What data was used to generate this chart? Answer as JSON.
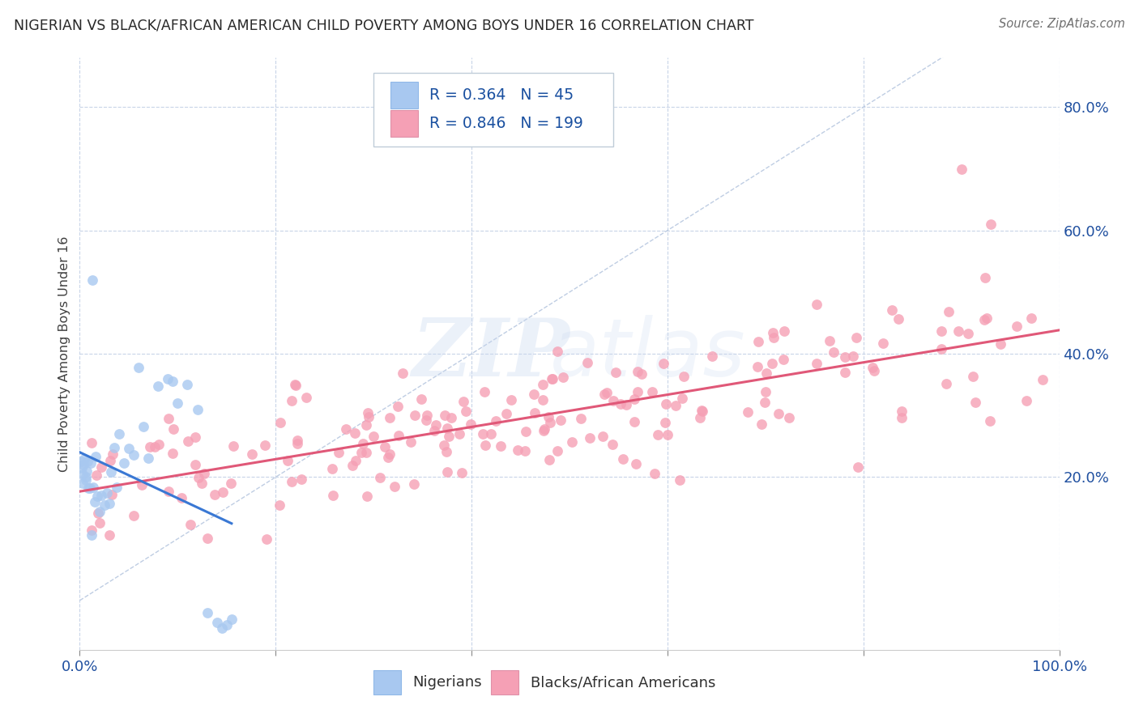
{
  "title": "NIGERIAN VS BLACK/AFRICAN AMERICAN CHILD POVERTY AMONG BOYS UNDER 16 CORRELATION CHART",
  "source": "Source: ZipAtlas.com",
  "ylabel": "Child Poverty Among Boys Under 16",
  "ytick_labels": [
    "20.0%",
    "40.0%",
    "60.0%",
    "80.0%"
  ],
  "ytick_positions": [
    0.2,
    0.4,
    0.6,
    0.8
  ],
  "xlim": [
    0.0,
    1.0
  ],
  "ylim": [
    -0.08,
    0.88
  ],
  "watermark_zip": "ZIP",
  "watermark_atlas": "atlas",
  "legend": {
    "nigerian_R": "0.364",
    "nigerian_N": "45",
    "black_R": "0.846",
    "black_N": "199"
  },
  "nigerian_color": "#a8c8f0",
  "nigerian_line_color": "#3a78d4",
  "black_color": "#f5a0b5",
  "black_line_color": "#e05878",
  "diagonal_color": "#b8c8e0",
  "background_color": "#ffffff",
  "grid_color": "#c8d4e8",
  "title_color": "#282828",
  "source_color": "#707070",
  "axis_label_color": "#2050a0",
  "legend_text_color": "#1a50a0",
  "bottom_legend_color": "#303030"
}
